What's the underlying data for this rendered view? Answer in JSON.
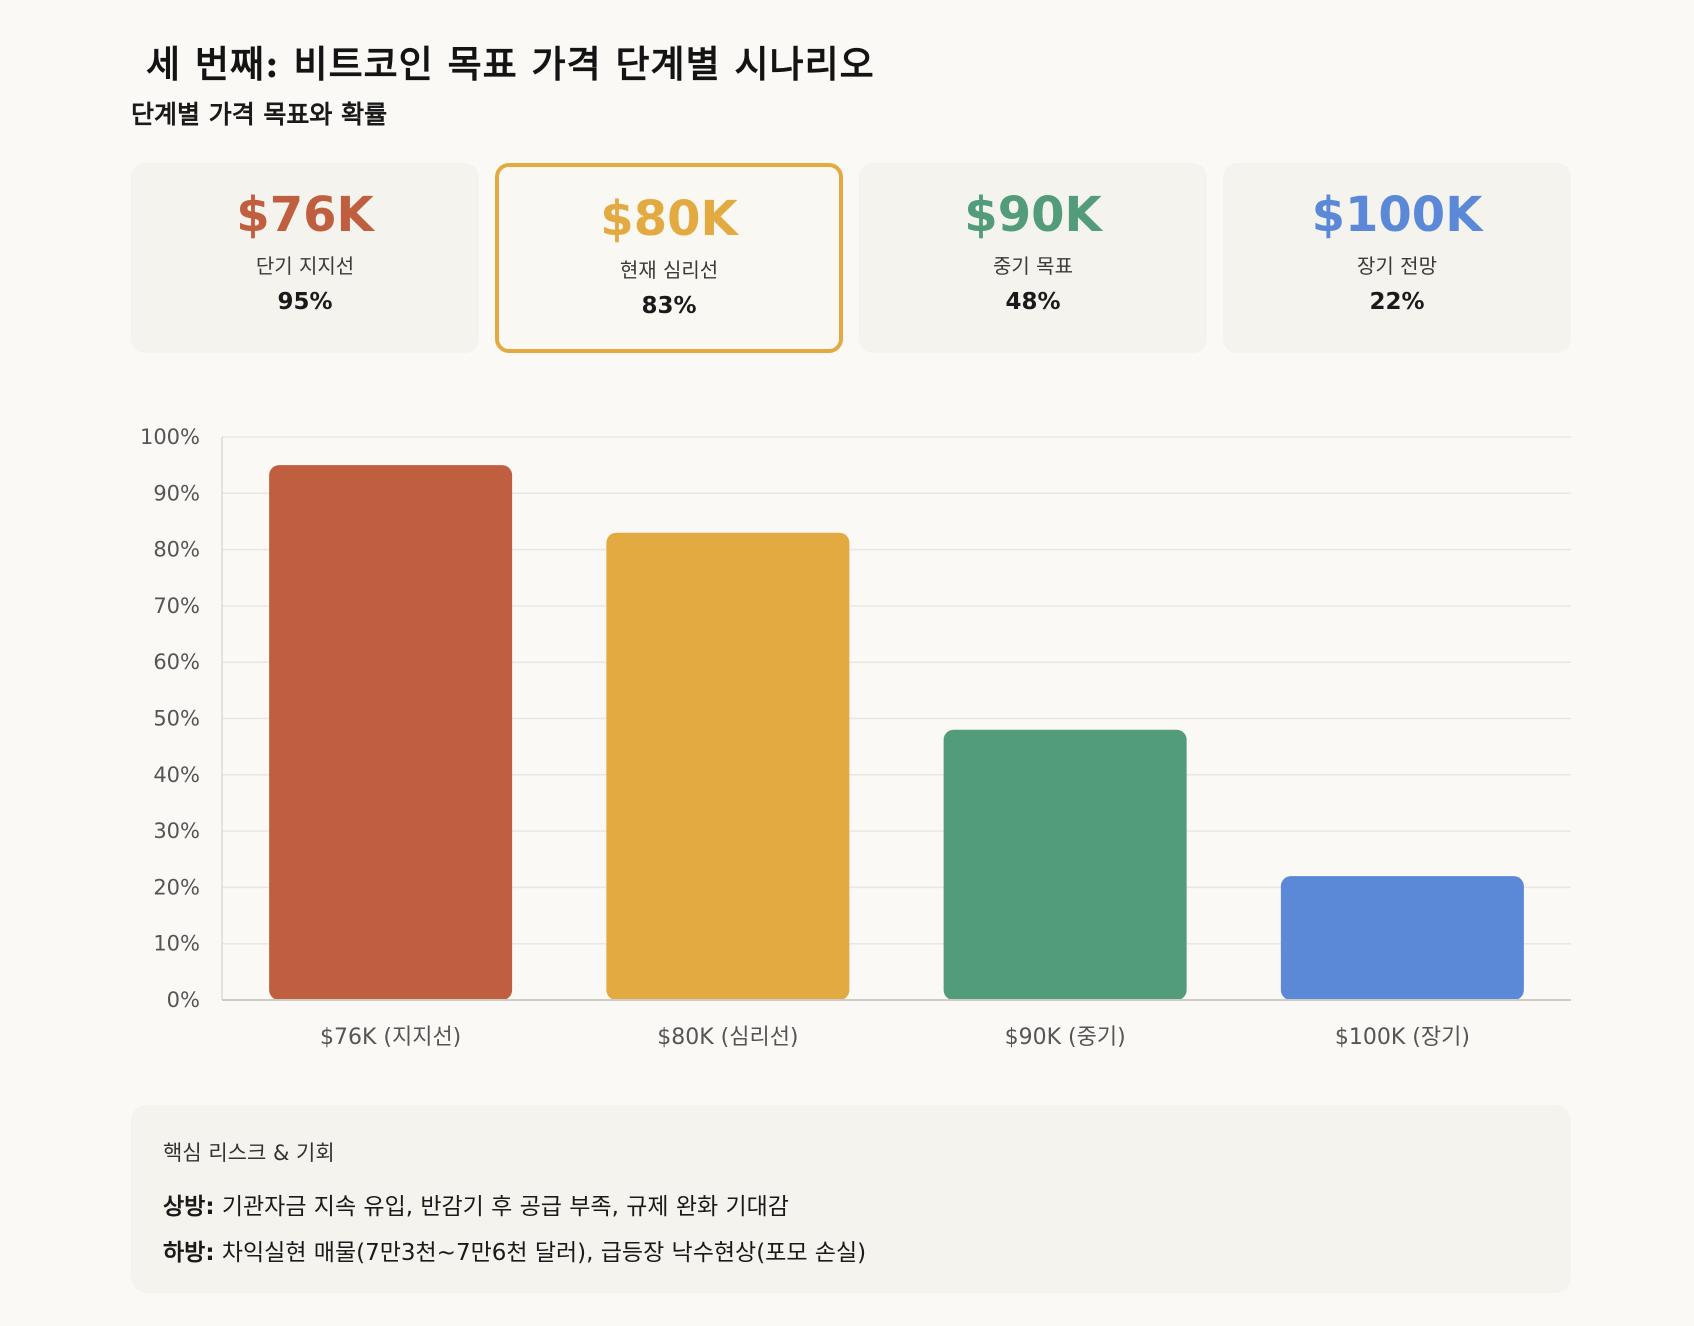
{
  "header": {
    "title": "세 번째: 비트코인 목표 가격 단계별 시나리오",
    "subtitle": "단계별 가격 목표와 확률"
  },
  "cards": [
    {
      "price": "$76K",
      "label": "단기 지지선",
      "prob": "95%",
      "color": "#bf5f40",
      "highlight": false
    },
    {
      "price": "$80K",
      "label": "현재 심리선",
      "prob": "83%",
      "color": "#e3aa42",
      "highlight": true
    },
    {
      "price": "$90K",
      "label": "중기 목표",
      "prob": "48%",
      "color": "#529c7a",
      "highlight": false
    },
    {
      "price": "$100K",
      "label": "장기 전망",
      "prob": "22%",
      "color": "#5b89d7",
      "highlight": false
    }
  ],
  "chart_data": {
    "type": "bar",
    "categories": [
      "$76K (지지선)",
      "$80K (심리선)",
      "$90K (중기)",
      "$100K (장기)"
    ],
    "values": [
      95,
      83,
      48,
      22
    ],
    "colors": [
      "#bf5f40",
      "#e3aa42",
      "#529c7a",
      "#5b89d7"
    ],
    "ylim": [
      0,
      100
    ],
    "yticks": [
      "0%",
      "10%",
      "20%",
      "30%",
      "40%",
      "50%",
      "60%",
      "70%",
      "80%",
      "90%",
      "100%"
    ],
    "grid": true
  },
  "notes": {
    "title": "핵심 리스크 & 기회",
    "up_label": "상방:",
    "up_text": " 기관자금 지속 유입, 반감기 후 공급 부족, 규제 완화 기대감",
    "down_label": "하방:",
    "down_text": " 차익실현 매물(7만3천~7만6천 달러), 급등장 낙수현상(포모 손실)"
  }
}
